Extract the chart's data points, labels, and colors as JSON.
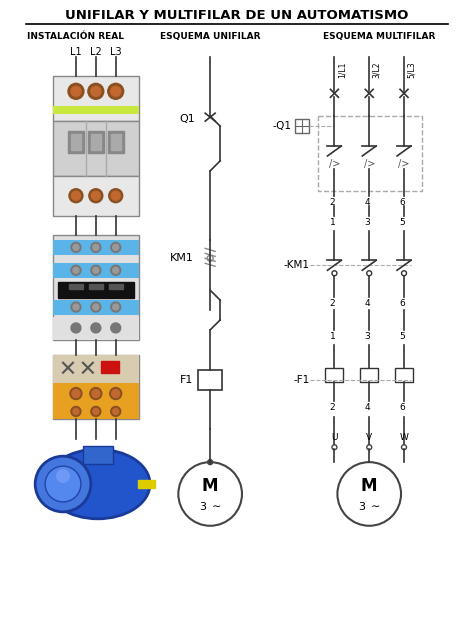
{
  "title": "UNIFILAR Y MULTIFILAR DE UN AUTOMATISMO",
  "col1_label": "INSTALACIÓN REAL",
  "col2_label": "ESQUEMA UNIFILAR",
  "col3_label": "ESQUEMA MULTIFILAR",
  "L_labels": [
    "L1",
    "L2",
    "L3"
  ],
  "label_Q1": "Q1",
  "label_KM1": "KM1",
  "label_F1": "F1",
  "label_neg_Q1": "-Q1",
  "label_neg_KM1": "-KM1",
  "label_neg_F1": "-F1",
  "multi_top_labels": [
    "1/L1",
    "3/L2",
    "5/L3"
  ],
  "multi_Q1_bot": [
    "2",
    "4",
    "6"
  ],
  "multi_KM1_top": [
    "1",
    "3",
    "5"
  ],
  "multi_KM1_bot": [
    "2",
    "4",
    "6"
  ],
  "multi_F1_top": [
    "1",
    "3",
    "5"
  ],
  "multi_F1_bot": [
    "2",
    "4",
    "6"
  ],
  "multi_motor_labels": [
    "U",
    "V",
    "W"
  ],
  "bg_color": "#ffffff",
  "lc": "#333333",
  "dc": "#aaaaaa",
  "green_stripe": "#c8e840",
  "blue_stripe": "#5ab4e8",
  "gray_cb": "#c8c8c8",
  "orange_term": "#e8a020",
  "motor_blue": "#2255cc",
  "motor_dark": "#1a3a99"
}
